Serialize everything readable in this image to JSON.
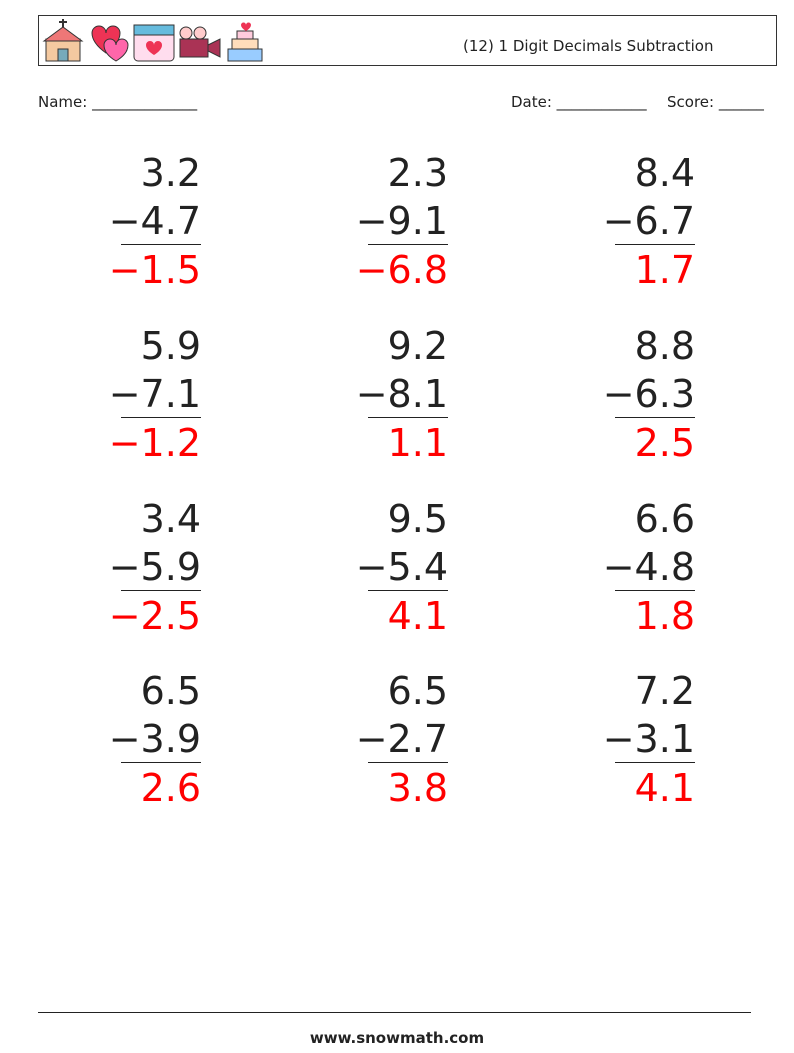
{
  "header": {
    "title": "(12) 1 Digit Decimals Subtraction"
  },
  "fields": {
    "name": "Name: ______________",
    "date": "Date: ____________",
    "score": "Score: ______"
  },
  "problems": [
    {
      "top": "3.2",
      "bottom": "−4.7",
      "answer": "−1.5"
    },
    {
      "top": "2.3",
      "bottom": "−9.1",
      "answer": "−6.8"
    },
    {
      "top": "8.4",
      "bottom": "−6.7",
      "answer": "1.7"
    },
    {
      "top": "5.9",
      "bottom": "−7.1",
      "answer": "−1.2"
    },
    {
      "top": "9.2",
      "bottom": "−8.1",
      "answer": "1.1"
    },
    {
      "top": "8.8",
      "bottom": "−6.3",
      "answer": "2.5"
    },
    {
      "top": "3.4",
      "bottom": "−5.9",
      "answer": "−2.5"
    },
    {
      "top": "9.5",
      "bottom": "−5.4",
      "answer": "4.1"
    },
    {
      "top": "6.6",
      "bottom": "−4.8",
      "answer": "1.8"
    },
    {
      "top": "6.5",
      "bottom": "−3.9",
      "answer": "2.6"
    },
    {
      "top": "6.5",
      "bottom": "−2.7",
      "answer": "3.8"
    },
    {
      "top": "7.2",
      "bottom": "−3.1",
      "answer": "4.1"
    }
  ],
  "footer": {
    "site": "www.snowmath.com"
  }
}
